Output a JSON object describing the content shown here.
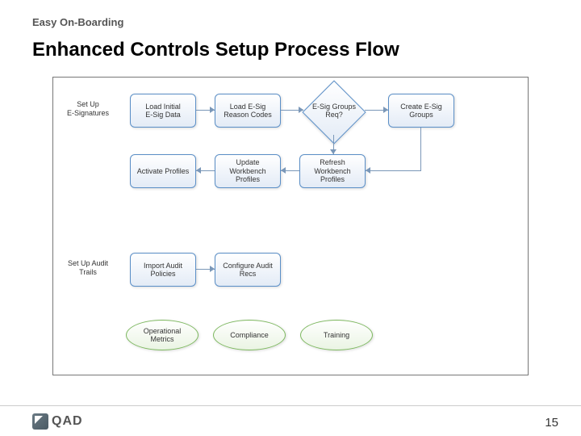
{
  "header": {
    "small": "Easy On-Boarding",
    "main": "Enhanced Controls Setup Process Flow"
  },
  "diagram": {
    "type": "flowchart",
    "frame_border_color": "#777777",
    "background_color": "#ffffff",
    "node_blue_fill_top": "#ffffff",
    "node_blue_fill_bottom": "#e3ebf6",
    "node_blue_border": "#5b8fc7",
    "node_green_fill_top": "#ffffff",
    "node_green_fill_bottom": "#eaf4e3",
    "node_green_border": "#7db85f",
    "connector_color": "#7a97b8",
    "label_font_size": 9,
    "row1_label": "Set Up\nE-Signatures",
    "row1_nodes": {
      "n1": "Load Initial\nE-Sig Data",
      "n2": "Load E-Sig\nReason Codes",
      "n3_decision": "E-Sig Groups\nReq?",
      "n4": "Create E-Sig\nGroups"
    },
    "row2_nodes": {
      "n5": "Activate Profiles",
      "n6": "Update\nWorkbench\nProfiles",
      "n7": "Refresh\nWorkbench\nProfiles"
    },
    "row3_label": "Set Up Audit\nTrails",
    "row3_nodes": {
      "n8": "Import Audit\nPolicies",
      "n9": "Configure Audit\nRecs"
    },
    "row4_ellipses": {
      "e1": "Operational\nMetrics",
      "e2": "Compliance",
      "e3": "Training"
    }
  },
  "footer": {
    "logo_text": "QAD",
    "page_number": "15"
  }
}
